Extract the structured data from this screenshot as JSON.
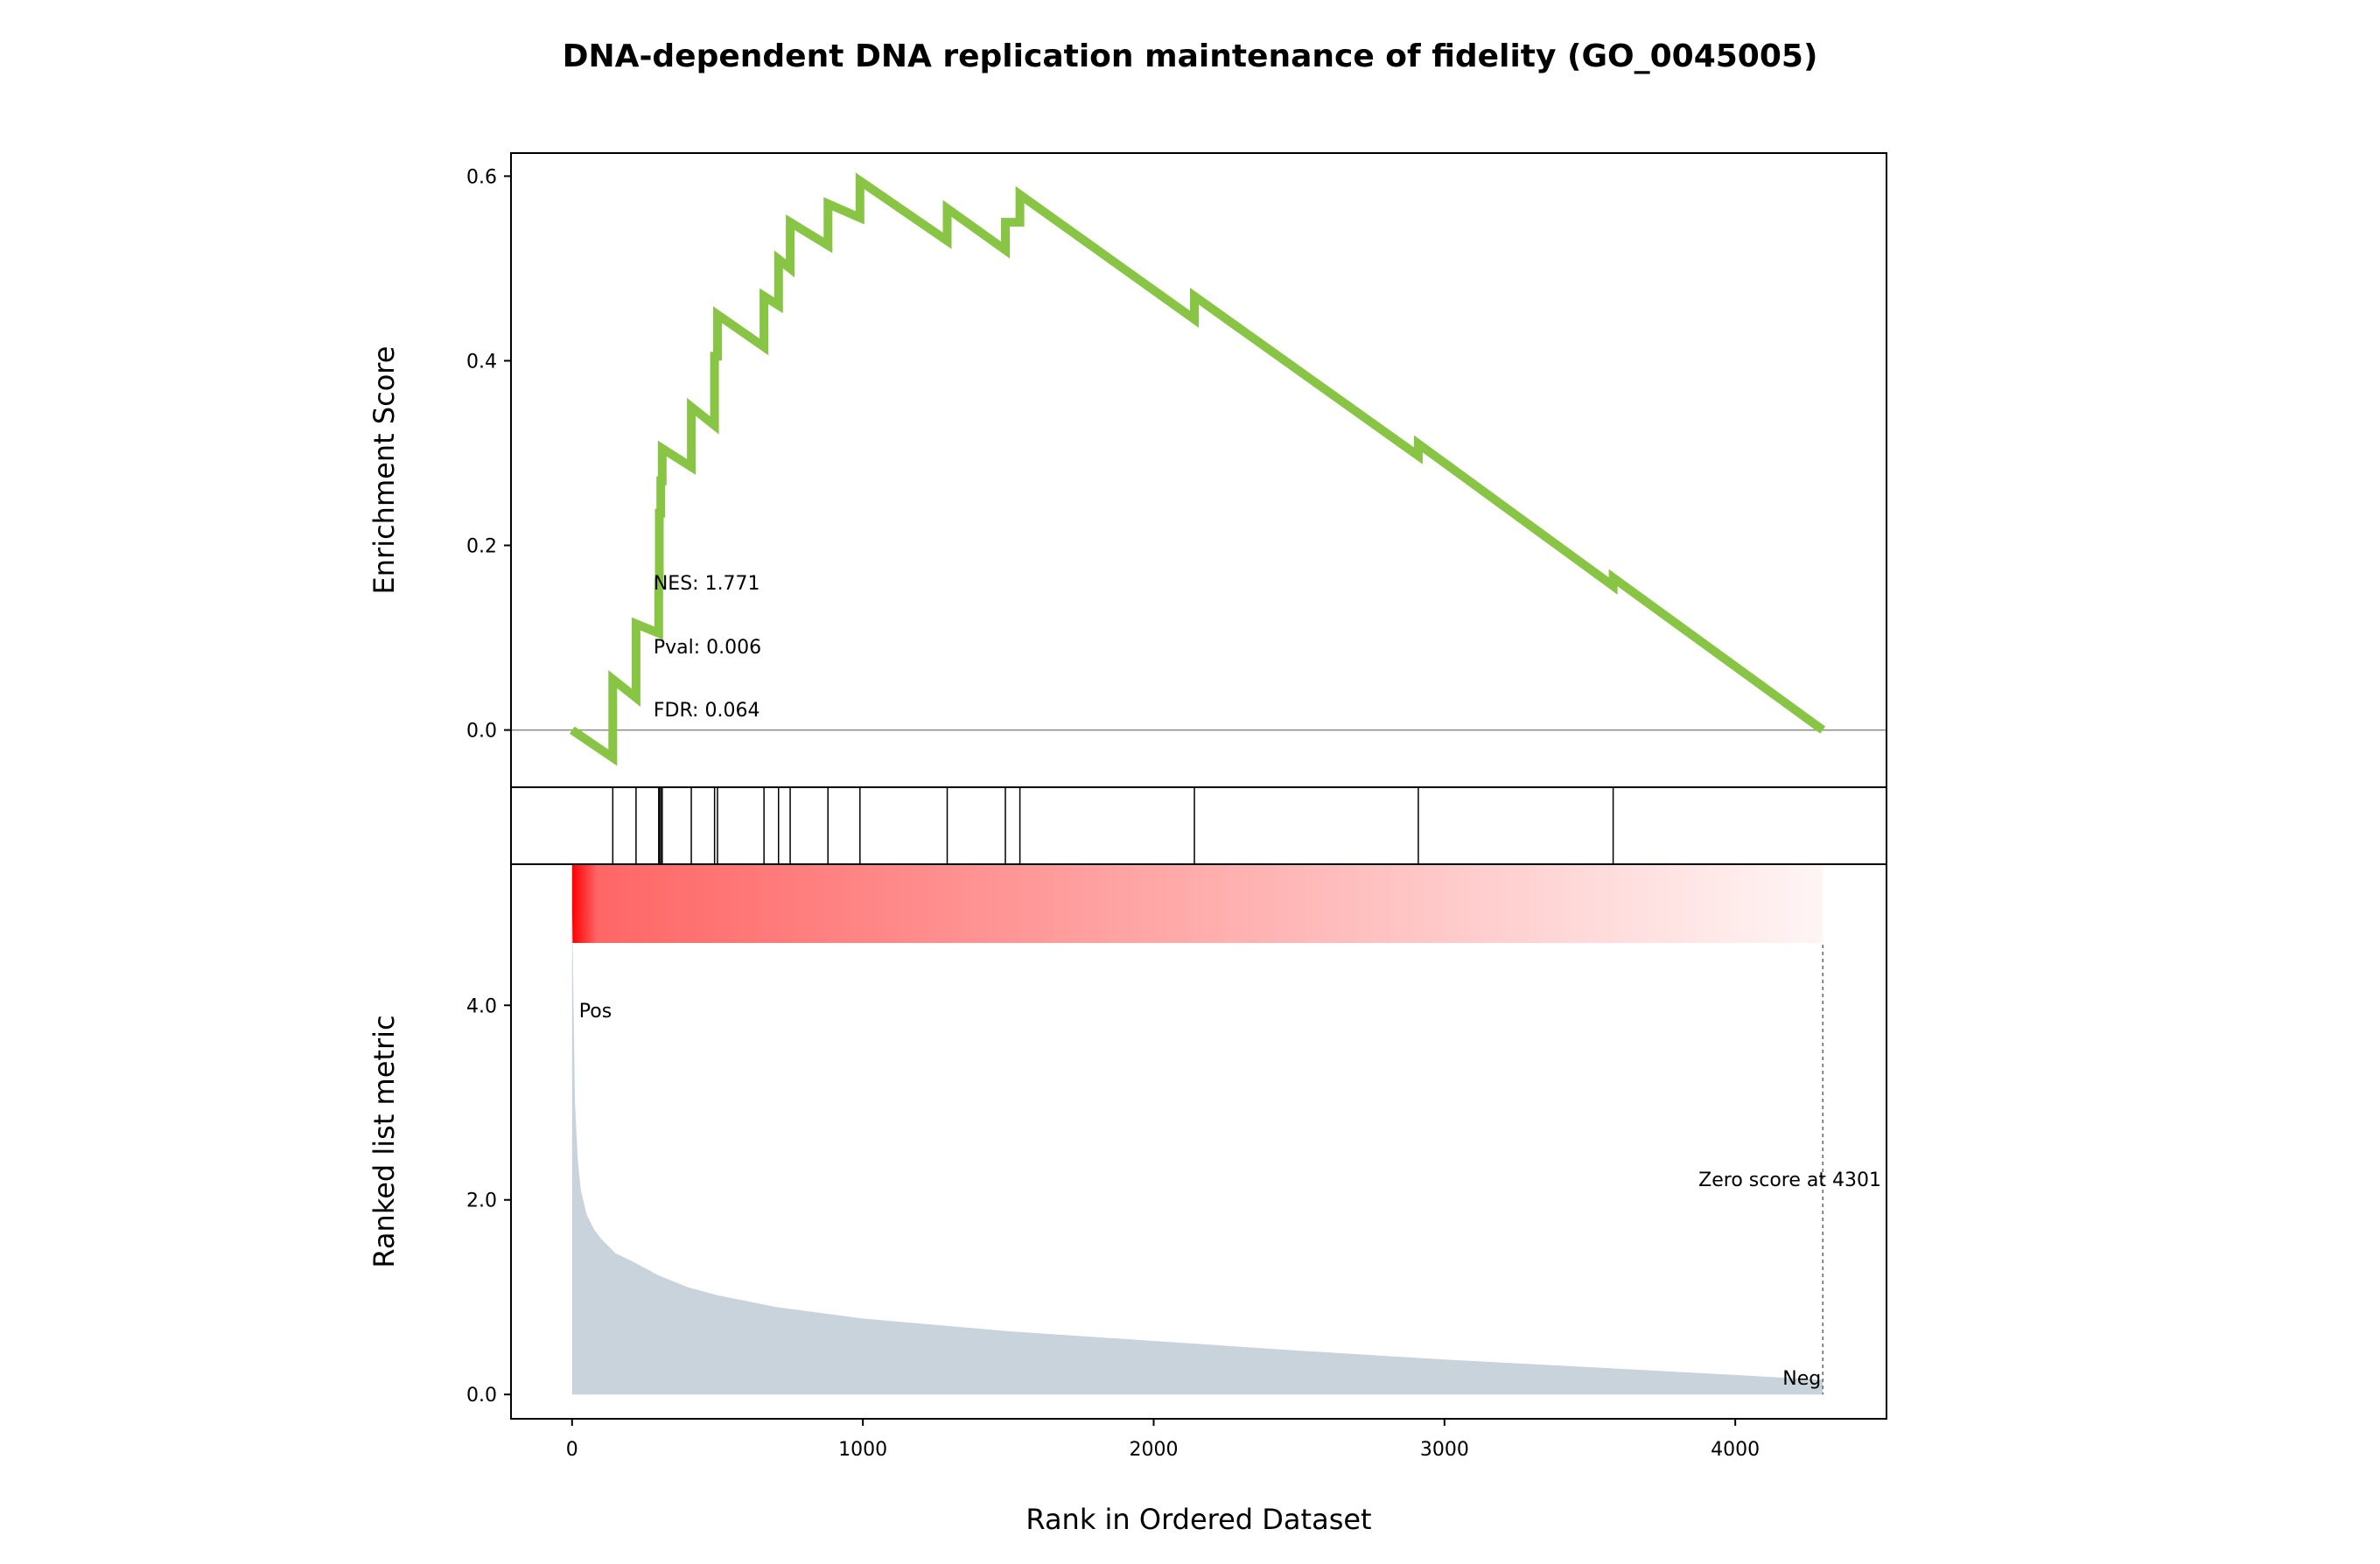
{
  "title": "DNA-dependent DNA replication maintenance of fidelity (GO_0045005)",
  "colors": {
    "es_line": "#88c544",
    "metric_fill": "#c8d3dc",
    "pos_label": "#ff0000",
    "neg_label": "#0000ff",
    "heat_start": "#ff0000",
    "heat_end": "#fff5f5"
  },
  "chart_data": {
    "type": "line",
    "title": "DNA-dependent DNA replication maintenance of fidelity (GO_0045005)",
    "xlabel": "Rank in Ordered Dataset",
    "xlim": [
      -210,
      4520
    ],
    "xticks": [
      0,
      1000,
      2000,
      3000,
      4000
    ],
    "xtick_labels": [
      "0",
      "1000",
      "2000",
      "3000",
      "4000"
    ],
    "es_panel": {
      "ylabel": "Enrichment Score",
      "ylim": [
        -0.062,
        0.625
      ],
      "yticks": [
        0.0,
        0.2,
        0.4,
        0.6
      ],
      "ytick_labels": [
        "0.0",
        "0.2",
        "0.4",
        "0.6"
      ],
      "zero_line": true,
      "running_es": {
        "x": [
          0,
          140,
          140,
          220,
          220,
          298,
          298,
          300,
          300,
          305,
          305,
          310,
          310,
          410,
          410,
          490,
          490,
          500,
          500,
          660,
          660,
          710,
          710,
          750,
          750,
          880,
          880,
          990,
          990,
          1290,
          1290,
          1490,
          1490,
          1540,
          1540,
          2140,
          2140,
          2910,
          2910,
          3580,
          3580,
          4301
        ],
        "y": [
          0.0,
          -0.03,
          0.055,
          0.035,
          0.115,
          0.105,
          0.16,
          0.16,
          0.235,
          0.235,
          0.27,
          0.27,
          0.305,
          0.285,
          0.35,
          0.33,
          0.405,
          0.405,
          0.45,
          0.415,
          0.47,
          0.46,
          0.51,
          0.5,
          0.55,
          0.525,
          0.57,
          0.555,
          0.595,
          0.53,
          0.565,
          0.52,
          0.55,
          0.55,
          0.58,
          0.445,
          0.47,
          0.297,
          0.31,
          0.156,
          0.165,
          0.0
        ]
      },
      "annotations": [
        "NES: 1.771",
        "Pval: 0.006",
        "FDR: 0.064"
      ]
    },
    "hits": [
      140,
      220,
      298,
      300,
      305,
      310,
      410,
      490,
      500,
      660,
      710,
      750,
      880,
      990,
      1290,
      1490,
      1540,
      2140,
      2910,
      3580
    ],
    "metric_panel": {
      "ylabel": "Ranked list metric",
      "ylim": [
        -0.25,
        5.45
      ],
      "yticks": [
        0.0,
        2.0,
        4.0
      ],
      "ytick_labels": [
        "0.0",
        "2.0",
        "4.0"
      ],
      "heatmap_ylim_fraction": [
        0.82,
        1.0
      ],
      "curve": {
        "x": [
          0,
          5,
          10,
          20,
          30,
          50,
          75,
          100,
          150,
          200,
          300,
          400,
          500,
          700,
          1000,
          1500,
          2000,
          2500,
          3000,
          3500,
          4000,
          4301
        ],
        "y": [
          5.05,
          4.0,
          3.0,
          2.4,
          2.1,
          1.85,
          1.7,
          1.6,
          1.45,
          1.38,
          1.22,
          1.1,
          1.02,
          0.9,
          0.78,
          0.65,
          0.55,
          0.45,
          0.36,
          0.28,
          0.2,
          0.15
        ]
      },
      "zero_score_rank": 4301,
      "zero_score_label": "Zero score at 4301",
      "pos_label": "Pos",
      "neg_label": "Neg"
    }
  }
}
